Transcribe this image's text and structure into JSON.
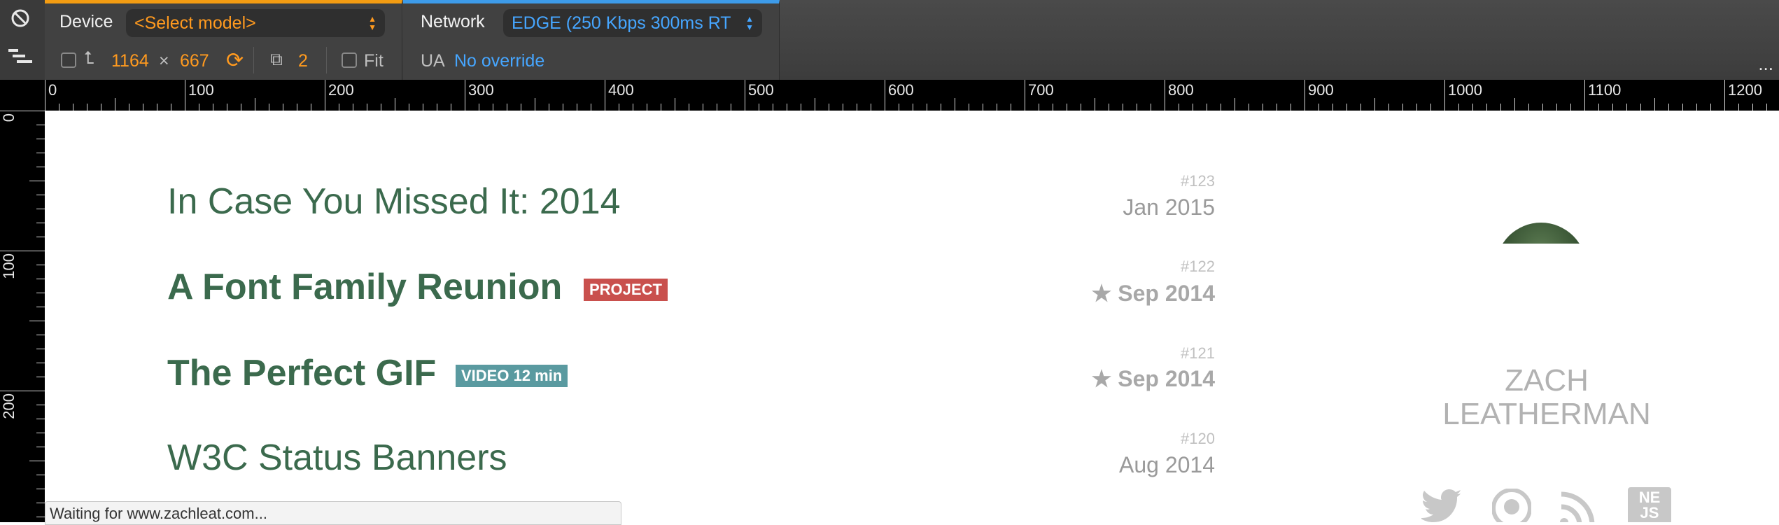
{
  "toolbar": {
    "device": {
      "label": "Device",
      "model_select": "<Select model>",
      "width": "1164",
      "times": "×",
      "height": "667",
      "dpr": "2",
      "fit_label": "Fit"
    },
    "network": {
      "label": "Network",
      "throttle_select": "EDGE (250 Kbps 300ms RT",
      "ua_label": "UA",
      "ua_value": "No override"
    },
    "more": "...",
    "colors": {
      "device_accent": "#f39c12",
      "network_accent": "#3d9be9"
    }
  },
  "rulers": {
    "top_labels": [
      "0",
      "100",
      "200",
      "300",
      "400",
      "500",
      "600",
      "700",
      "800",
      "900",
      "1000",
      "1100",
      "1200"
    ],
    "left_labels": [
      "0",
      "100",
      "200"
    ]
  },
  "posts": [
    {
      "title": "In Case You Missed It: 2014",
      "number": "#123",
      "date": "Jan 2015",
      "starred": false
    },
    {
      "title": "A Font Family Reunion",
      "tag": "PROJECT",
      "number": "#122",
      "date": "★ Sep 2014",
      "starred": true
    },
    {
      "title": "The Perfect GIF",
      "tag": "VIDEO 12 min",
      "number": "#121",
      "date": "★ Sep 2014",
      "starred": true
    },
    {
      "title": "W3C Status Banners",
      "number": "#120",
      "date": "Aug 2014",
      "starred": false
    }
  ],
  "sidebar": {
    "author_first": "ZACH",
    "author_last": "LEATHERMAN",
    "social_icons": [
      "twitter-icon",
      "github-icon",
      "rss-icon",
      "nebraska-js-icon"
    ],
    "nejs_badge": "NE JS"
  },
  "status_bar": {
    "text": "Waiting for www.zachleat.com..."
  }
}
